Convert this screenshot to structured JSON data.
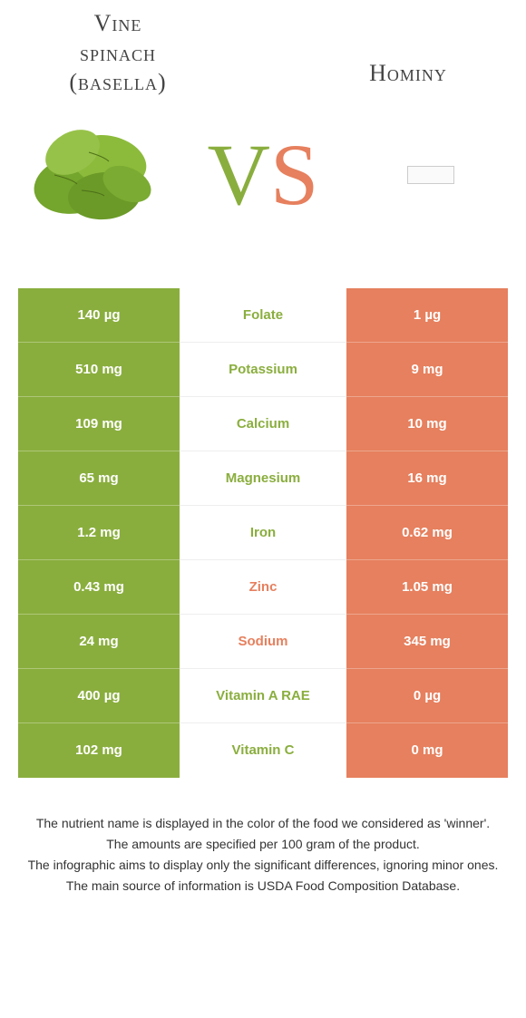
{
  "colors": {
    "green_col": "#8aae3e",
    "orange_col": "#e6805e",
    "vs_v": "#8aae3e",
    "vs_s": "#e6805e",
    "row_border": "#ffffff"
  },
  "food_a": {
    "title_line1": "Vine",
    "title_line2": "spinach",
    "title_line3": "(basella)"
  },
  "food_b": {
    "title": "Hominy"
  },
  "vs": {
    "v": "V",
    "s": "S"
  },
  "rows": [
    {
      "left": "140 µg",
      "name": "Folate",
      "right": "1 µg",
      "winner": "a"
    },
    {
      "left": "510 mg",
      "name": "Potassium",
      "right": "9 mg",
      "winner": "a"
    },
    {
      "left": "109 mg",
      "name": "Calcium",
      "right": "10 mg",
      "winner": "a"
    },
    {
      "left": "65 mg",
      "name": "Magnesium",
      "right": "16 mg",
      "winner": "a"
    },
    {
      "left": "1.2 mg",
      "name": "Iron",
      "right": "0.62 mg",
      "winner": "a"
    },
    {
      "left": "0.43 mg",
      "name": "Zinc",
      "right": "1.05 mg",
      "winner": "b"
    },
    {
      "left": "24 mg",
      "name": "Sodium",
      "right": "345 mg",
      "winner": "b"
    },
    {
      "left": "400 µg",
      "name": "Vitamin A RAE",
      "right": "0 µg",
      "winner": "a"
    },
    {
      "left": "102 mg",
      "name": "Vitamin C",
      "right": "0 mg",
      "winner": "a"
    }
  ],
  "footnotes": [
    "The nutrient name is displayed in the color of the food we considered as 'winner'.",
    "The amounts are specified per 100 gram of the product.",
    "The infographic aims to display only the significant differences, ignoring minor ones.",
    "The main source of information is USDA Food Composition Database."
  ]
}
